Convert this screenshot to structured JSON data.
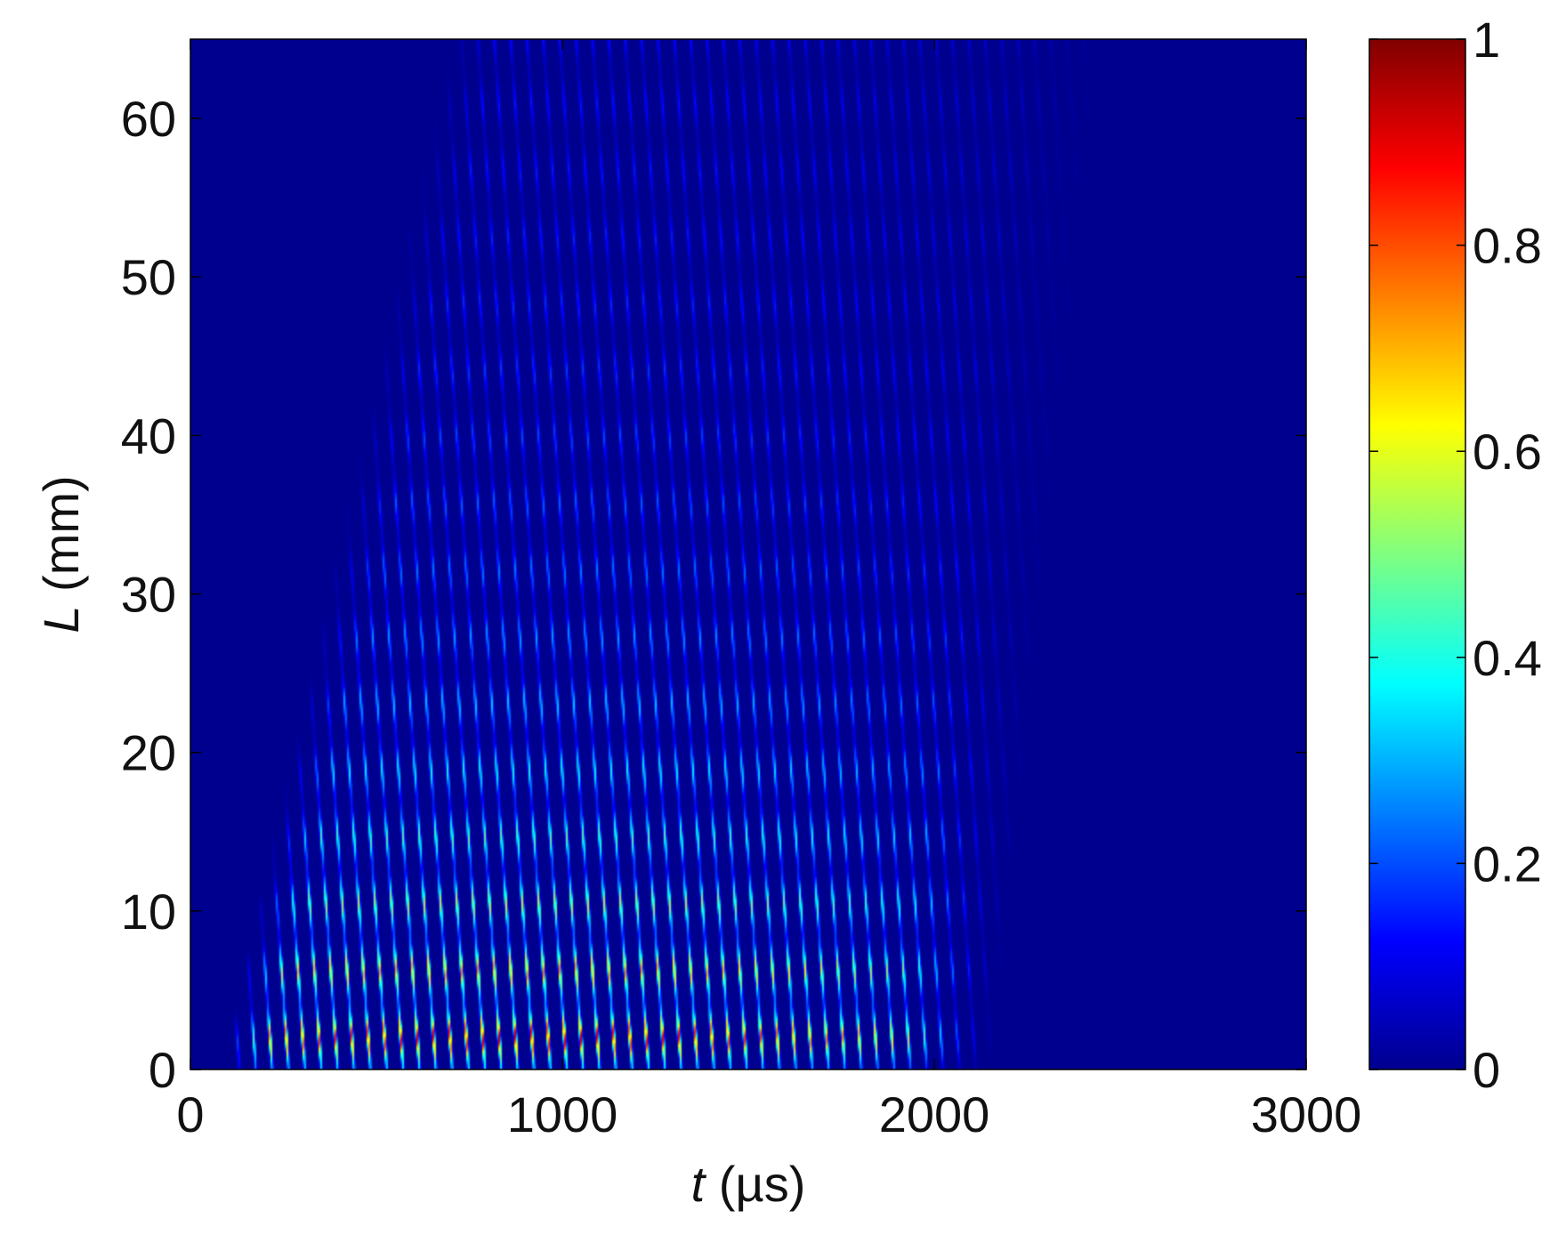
{
  "chart_data": {
    "type": "heatmap",
    "title": "",
    "xlabel": {
      "italic": "t",
      "rest": " (µs)"
    },
    "ylabel": {
      "italic": "L",
      "rest": " (mm)"
    },
    "xlim": [
      0,
      3000
    ],
    "ylim": [
      0,
      65
    ],
    "xticks": [
      0,
      1000,
      2000,
      3000
    ],
    "xtick_labels": [
      "0",
      "1000",
      "2000",
      "3000"
    ],
    "yticks": [
      0,
      10,
      20,
      30,
      40,
      50,
      60
    ],
    "ytick_labels": [
      "0",
      "10",
      "20",
      "30",
      "40",
      "50",
      "60"
    ],
    "colorbar": {
      "range": [
        0,
        1
      ],
      "ticks": [
        0,
        0.2,
        0.4,
        0.6,
        0.8,
        1
      ],
      "tick_labels": [
        "0",
        "0.2",
        "0.4",
        "0.6",
        "0.8",
        "1"
      ],
      "colormap": "jet"
    },
    "field": {
      "description_values": "normalized amplitude of streaked wave fronts",
      "wave_period_us": 44,
      "slope_us_per_mm": -3.0,
      "band_spacing_mm": 4.2,
      "onset_at_L0_us": 80,
      "onset_slope_us_per_mm": 9.5,
      "end_at_L0_us": 1900,
      "end_slope_us_per_mm": 5,
      "peak_amplitude": 1.0,
      "decay_length_mm": 16
    },
    "grid": false,
    "legend": "none"
  },
  "colors": {
    "background": "#00008f",
    "colormap_stops": [
      "#00008f",
      "#0000ff",
      "#00ffff",
      "#ffff00",
      "#ff0000",
      "#800000"
    ]
  }
}
